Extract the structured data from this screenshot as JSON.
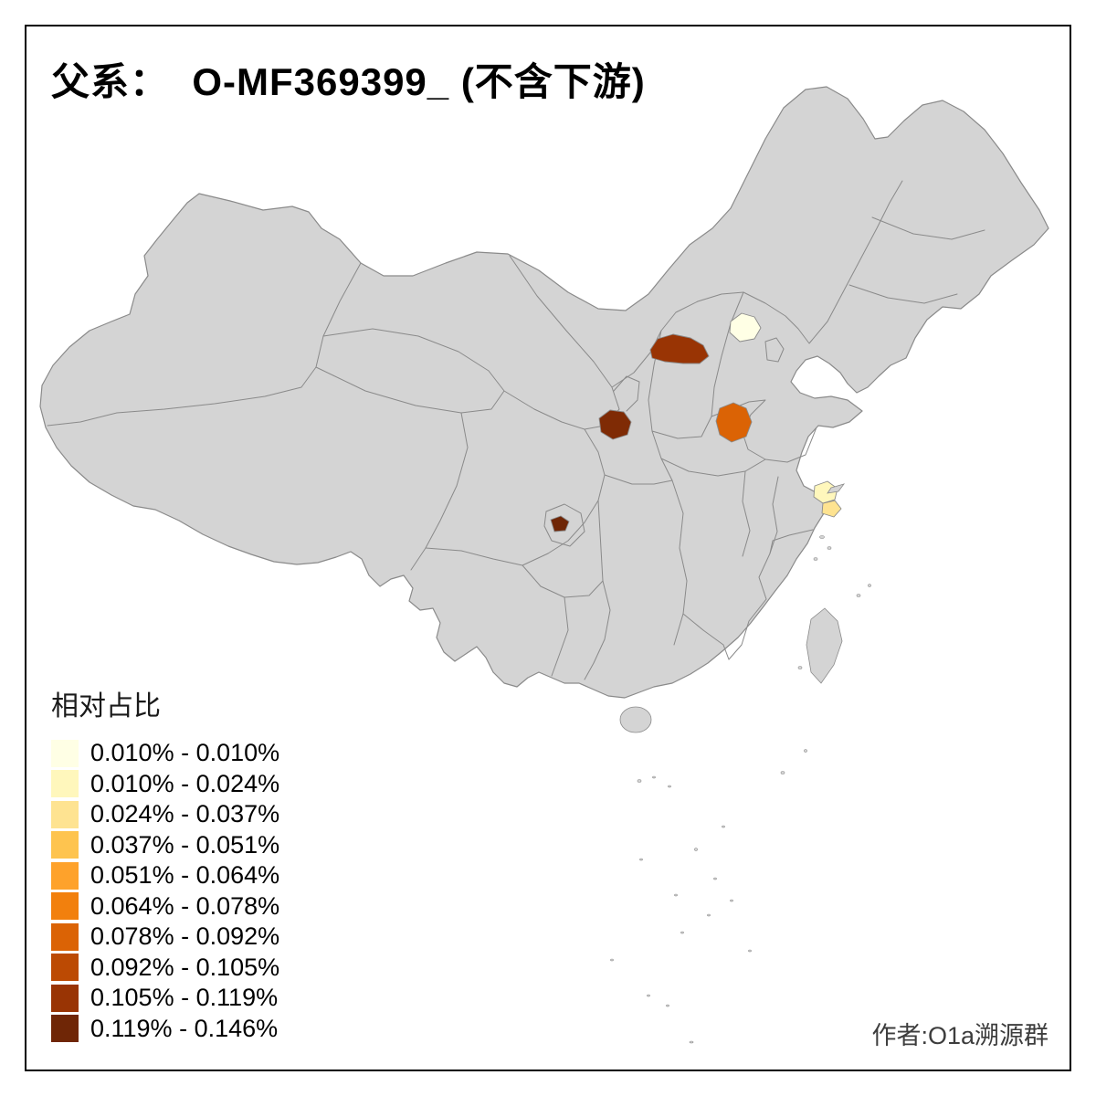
{
  "title": "父系：  O-MF369399_ (不含下游)",
  "attribution": "作者:O1a溯源群",
  "legend": {
    "title": "相对占比",
    "items": [
      {
        "label": "0.010% - 0.010%",
        "color": "#FFFFE5"
      },
      {
        "label": "0.010% - 0.024%",
        "color": "#FFF7BC"
      },
      {
        "label": "0.024% - 0.037%",
        "color": "#FEE391"
      },
      {
        "label": "0.037% - 0.051%",
        "color": "#FEC44F"
      },
      {
        "label": "0.051% - 0.064%",
        "color": "#FEA22B"
      },
      {
        "label": "0.064% - 0.078%",
        "color": "#F2800D"
      },
      {
        "label": "0.078% - 0.092%",
        "color": "#DB6305"
      },
      {
        "label": "0.092% - 0.105%",
        "color": "#BC4A03"
      },
      {
        "label": "0.105% - 0.119%",
        "color": "#993404"
      },
      {
        "label": "0.119% - 0.146%",
        "color": "#6F2606"
      }
    ]
  },
  "map": {
    "base_fill": "#D4D4D4",
    "border_color": "#8A8A8A",
    "frame_color": "#000000",
    "regions": {
      "shanxi-north": {
        "color": "#993404",
        "range": "0.105% - 0.119%"
      },
      "beijing": {
        "color": "#FFFFE5",
        "range": "0.010% - 0.010%"
      },
      "shaanxi-central": {
        "color": "#7F2B05",
        "range": "0.119% - 0.146%"
      },
      "shandong-west": {
        "color": "#DB6305",
        "range": "0.078% - 0.092%"
      },
      "jiangsu-south": {
        "color": "#FFF7BC",
        "range": "0.010% - 0.024%"
      },
      "shanghai": {
        "color": "#FEE391",
        "range": "0.024% - 0.037%"
      },
      "sichuan-east": {
        "color": "#6F2606",
        "range": "0.119% - 0.146%"
      }
    }
  }
}
